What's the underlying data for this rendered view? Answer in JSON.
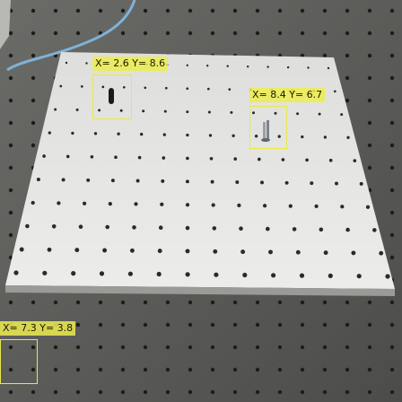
{
  "annotations": [
    {
      "text": "X= 2.6 Y= 8.6"
    },
    {
      "text": "X= 8.4 Y= 6.7"
    },
    {
      "text": "X= 7.3 Y= 3.8"
    }
  ],
  "colors": {
    "annotation": "#e8e84a",
    "annotation_fill": "rgba(236,236,80,0.85)"
  }
}
